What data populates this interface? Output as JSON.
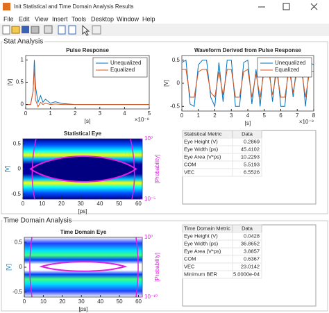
{
  "window": {
    "title": "Init Statistical and Time Domain Analysis Results"
  },
  "menu": [
    "File",
    "Edit",
    "View",
    "Insert",
    "Tools",
    "Desktop",
    "Window",
    "Help"
  ],
  "stat_analysis": {
    "title": "Stat Analysis",
    "charts": [
      {
        "type": "line",
        "title": "Pulse Response",
        "xlabel": "[s]",
        "ylabel": "[V]",
        "x_multiplier": "×10⁻⁸",
        "xlim": [
          0,
          5
        ],
        "ylim": [
          -0.1,
          1.1
        ],
        "xticks": [
          0,
          1,
          2,
          3,
          4,
          5
        ],
        "yticks": [
          0,
          0.5,
          1
        ],
        "legend": "northeast",
        "x": [
          0,
          0.2,
          0.3,
          0.35,
          0.4,
          0.5,
          0.6,
          0.7,
          0.8,
          1.0,
          1.2,
          1.5,
          2,
          3,
          4,
          5
        ],
        "series": [
          {
            "name": "Unequalized",
            "color": "#0072bd",
            "values": [
              0,
              0,
              0.3,
              1.0,
              0.4,
              0.05,
              0.2,
              0.05,
              0.12,
              0.03,
              0.06,
              0.02,
              0,
              0,
              0,
              0
            ]
          },
          {
            "name": "Equalized",
            "color": "#d95319",
            "values": [
              0,
              0,
              0.3,
              0.85,
              0.1,
              -0.05,
              0.05,
              0,
              0.03,
              0,
              0.01,
              0,
              0,
              0,
              0,
              0
            ]
          }
        ]
      },
      {
        "type": "line",
        "title": "Waveform Derived from Pulse Response",
        "xlabel": "[s]",
        "ylabel": "[V]",
        "x_multiplier": "×10⁻⁸",
        "xlim": [
          0,
          8
        ],
        "ylim": [
          -0.6,
          0.6
        ],
        "xticks": [
          0,
          1,
          2,
          3,
          4,
          5,
          6,
          7,
          8
        ],
        "yticks": [
          -0.5,
          0,
          0.5
        ],
        "legend": "northeast",
        "x": [
          0,
          0.25,
          0.5,
          0.75,
          1,
          1.25,
          1.5,
          1.75,
          2,
          2.25,
          2.5,
          2.75,
          3,
          3.25,
          3.5,
          3.75,
          4,
          4.25,
          4.5,
          4.75,
          5,
          5.25,
          5.5,
          5.75,
          6,
          6.25,
          6.5,
          6.75,
          7,
          7.25,
          7.5,
          7.75,
          8
        ],
        "series": [
          {
            "name": "Unequalized",
            "color": "#0072bd",
            "values": [
              0.45,
              0.5,
              -0.45,
              -0.5,
              0.4,
              0.5,
              0.5,
              -0.3,
              -0.5,
              0.45,
              -0.4,
              0.5,
              0.5,
              -0.5,
              -0.5,
              0.45,
              0.5,
              -0.45,
              0.3,
              -0.5,
              0.5,
              0.5,
              -0.4,
              0.45,
              -0.5,
              -0.5,
              0.5,
              -0.3,
              0.5,
              0.5,
              -0.5,
              0.45,
              0.4
            ]
          },
          {
            "name": "Equalized",
            "color": "#d95319",
            "values": [
              0.3,
              0.3,
              -0.3,
              -0.3,
              0.25,
              0.3,
              0.3,
              -0.2,
              -0.3,
              0.25,
              -0.25,
              0.3,
              0.3,
              -0.3,
              -0.3,
              0.25,
              0.3,
              -0.3,
              0.2,
              -0.3,
              0.3,
              0.3,
              -0.25,
              0.25,
              -0.3,
              -0.3,
              0.3,
              -0.2,
              0.3,
              0.3,
              -0.3,
              0.25,
              0.25
            ]
          }
        ]
      },
      {
        "type": "eye",
        "title": "Statistical Eye",
        "xlabel": "[ps]",
        "ylabel": "[V]",
        "y2label": "[Probability]",
        "xlim": [
          0,
          62
        ],
        "ylim": [
          -0.6,
          0.6
        ],
        "xticks": [
          0,
          10,
          20,
          30,
          40,
          50,
          60
        ],
        "yticks": [
          -0.5,
          0,
          0.5
        ],
        "y2log": true,
        "y2lim": [
          1e-05,
          1
        ],
        "y2ticks": [
          {
            "value": 1e-05,
            "label": "10⁻⁵"
          },
          {
            "value": 1,
            "label": "10⁰"
          }
        ]
      }
    ],
    "table": {
      "columns": [
        "Statistical Metric",
        "Data"
      ],
      "rows": [
        [
          "Eye Height (V)",
          "0.2869"
        ],
        [
          "Eye Width (ps)",
          "45.4102"
        ],
        [
          "Eye Area (V*ps)",
          "10.2293"
        ],
        [
          "COM",
          "5.5193"
        ],
        [
          "VEC",
          "6.5526"
        ]
      ]
    }
  },
  "time_domain_analysis": {
    "title": "Time Domain Analysis",
    "charts": [
      {
        "type": "eye",
        "title": "Time Domain Eye",
        "xlabel": "[ps]",
        "ylabel": "[V]",
        "y2label": "[Probability]",
        "xlim": [
          0,
          62
        ],
        "ylim": [
          -0.6,
          0.6
        ],
        "xticks": [
          0,
          10,
          20,
          30,
          40,
          50,
          60
        ],
        "yticks": [
          -0.5,
          0,
          0.5
        ],
        "y2log": true,
        "y2lim": [
          1e-10,
          1
        ],
        "y2ticks": [
          {
            "value": 1e-10,
            "label": "10⁻¹⁰"
          },
          {
            "value": 1,
            "label": "10⁰"
          }
        ]
      }
    ],
    "table": {
      "columns": [
        "Time Domain Metric",
        "Data"
      ],
      "rows": [
        [
          "Eye Height (V)",
          "0.0428"
        ],
        [
          "Eye Width (ps)",
          "36.8652"
        ],
        [
          "Eye Area (V*ps)",
          "3.8857"
        ],
        [
          "COM",
          "0.6367"
        ],
        [
          "VEC",
          "23.0142"
        ],
        [
          "Minimum BER",
          "5.0000e-04"
        ]
      ]
    }
  }
}
